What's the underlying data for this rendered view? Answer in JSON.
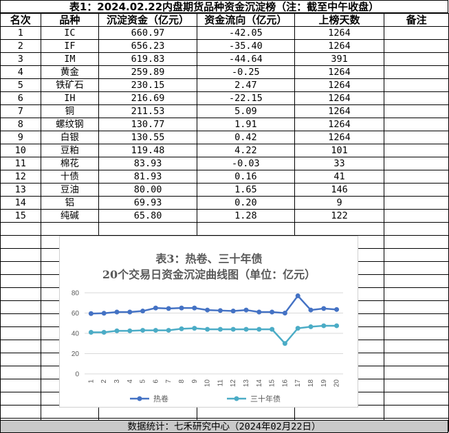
{
  "title": "表1：2024.02.22内盘期货品种资金沉淀榜（注：截至中午收盘）",
  "headers": [
    "名次",
    "品种",
    "沉淀资金（亿元）",
    "资金流向（亿元）",
    "上榜天数",
    "备注"
  ],
  "rows": [
    [
      "1",
      "IC",
      "660.97",
      "-42.05",
      "1264",
      ""
    ],
    [
      "2",
      "IF",
      "656.23",
      "-35.40",
      "1264",
      ""
    ],
    [
      "3",
      "IM",
      "619.83",
      "-44.64",
      "391",
      ""
    ],
    [
      "4",
      "黄金",
      "259.89",
      "-0.25",
      "1264",
      ""
    ],
    [
      "5",
      "铁矿石",
      "230.15",
      "2.47",
      "1264",
      ""
    ],
    [
      "6",
      "IH",
      "216.69",
      "-22.15",
      "1264",
      ""
    ],
    [
      "7",
      "铜",
      "211.53",
      "5.09",
      "1264",
      ""
    ],
    [
      "8",
      "螺纹钢",
      "130.77",
      "1.91",
      "1264",
      ""
    ],
    [
      "9",
      "白银",
      "130.55",
      "0.42",
      "1264",
      ""
    ],
    [
      "10",
      "豆粕",
      "119.48",
      "4.22",
      "101",
      ""
    ],
    [
      "11",
      "棉花",
      "83.93",
      "-0.03",
      "33",
      ""
    ],
    [
      "12",
      "十债",
      "81.93",
      "0.16",
      "41",
      ""
    ],
    [
      "13",
      "豆油",
      "80.00",
      "1.65",
      "146",
      ""
    ],
    [
      "14",
      "铝",
      "69.93",
      "0.20",
      "9",
      ""
    ],
    [
      "15",
      "纯碱",
      "65.80",
      "1.28",
      "122",
      ""
    ]
  ],
  "footer": "数据统计：七禾研究中心（2024年02月22日）",
  "chart_data": {
    "type": "line",
    "title": "表3：热卷、三十年债",
    "subtitle": "20个交易日资金沉淀曲线图（单位：亿元）",
    "x": [
      "1",
      "2",
      "3",
      "4",
      "5",
      "6",
      "7",
      "8",
      "9",
      "10",
      "11",
      "12",
      "13",
      "14",
      "15",
      "16",
      "17",
      "18",
      "19",
      "20"
    ],
    "ylim": [
      0,
      80
    ],
    "yticks": [
      "0",
      "20",
      "40",
      "60",
      "80"
    ],
    "grid": true,
    "legend": "bottom",
    "series": [
      {
        "name": "热卷",
        "color": "#4472c4",
        "values": [
          59.5,
          59.8,
          61,
          61,
          62,
          65,
          64.5,
          65,
          65,
          63,
          62.5,
          62,
          63,
          61,
          61,
          60,
          77,
          63,
          64.5,
          63.5
        ]
      },
      {
        "name": "三十年债",
        "color": "#4bacc6",
        "values": [
          41,
          41,
          42.5,
          42.5,
          43,
          43,
          43,
          44.5,
          45,
          44,
          44,
          44,
          44,
          44,
          44,
          30,
          45,
          46.5,
          47.5,
          47.5
        ]
      }
    ]
  }
}
